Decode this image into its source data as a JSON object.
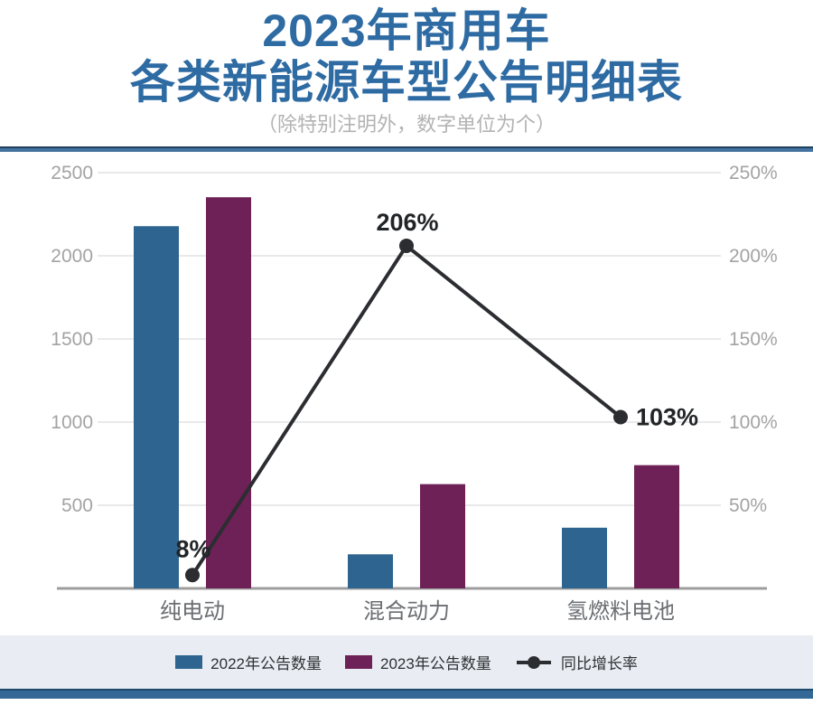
{
  "page": {
    "title_line1": "2023年商用车",
    "title_line2": "各类新能源车型公告明细表",
    "subtitle": "（除特别注明外，数字单位为个）"
  },
  "colors": {
    "title_blue": "#2e6ba3",
    "divider_blue": "#44739f",
    "bar_2022_blue": "#2d6590",
    "bar_2023_purple": "#6e2156",
    "growth_line_dark": "#2b2d31",
    "gridline_gray": "#e2e2e2",
    "axis_label_gray": "#a3a3a3",
    "legend_band_bg": "#e9edf3",
    "bottom_bar_blue": "#336897"
  },
  "chart_data": {
    "type": "bar",
    "subtype": "grouped-bars-with-line-overlay",
    "title": "2023年商用车各类新能源车型公告明细表",
    "xlabel": "",
    "ylabel": "",
    "categories": [
      "纯电动",
      "混合动力",
      "氢燃料电池"
    ],
    "series": [
      {
        "name": "2022年公告数量",
        "type": "bar",
        "color": "#2d6590",
        "values": [
          2178,
          205,
          365
        ]
      },
      {
        "name": "2023年公告数量",
        "type": "bar",
        "color": "#6e2156",
        "values": [
          2352,
          627,
          741
        ]
      },
      {
        "name": "同比增长率",
        "type": "line",
        "color": "#2b2d31",
        "axis": "right",
        "values": [
          8,
          206,
          103
        ],
        "point_labels": [
          "8%",
          "206%",
          "103%"
        ]
      }
    ],
    "left_axis": {
      "min": 0,
      "max": 2500,
      "ticks": [
        500,
        1000,
        1500,
        2000,
        2500
      ],
      "tick_labels": [
        "500",
        "1000",
        "1500",
        "2000",
        "2500"
      ]
    },
    "right_axis": {
      "min": 0,
      "max": 250,
      "tick_labels": [
        "50%",
        "100%",
        "150%",
        "200%",
        "250%"
      ]
    },
    "grid": true,
    "legend_position": "bottom"
  },
  "legend": {
    "items": [
      {
        "label": "2022年公告数量",
        "marker": "square"
      },
      {
        "label": "2023年公告数量",
        "marker": "square"
      },
      {
        "label": "同比增长率",
        "marker": "line-dot"
      }
    ]
  }
}
